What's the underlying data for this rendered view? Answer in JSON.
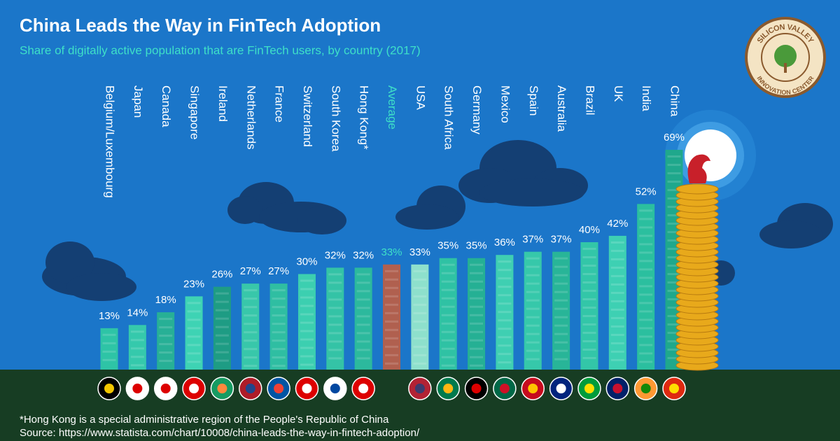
{
  "chart_data": {
    "type": "bar",
    "title": "China Leads the Way in FinTech Adoption",
    "subtitle": "Share of digitally active population that are FinTech users, by country (2017)",
    "categories": [
      "Belgium/Luxembourg",
      "Japan",
      "Canada",
      "Singapore",
      "Ireland",
      "Netherlands",
      "France",
      "Switzerland",
      "South Korea",
      "Hong Kong*",
      "Average",
      "USA",
      "South Africa",
      "Germany",
      "Mexico",
      "Spain",
      "Australia",
      "Brazil",
      "UK",
      "India",
      "China"
    ],
    "values": [
      13,
      14,
      18,
      23,
      26,
      27,
      27,
      30,
      32,
      32,
      33,
      33,
      35,
      35,
      36,
      37,
      37,
      40,
      42,
      52,
      69
    ],
    "value_labels": [
      "13%",
      "14%",
      "18%",
      "23%",
      "26%",
      "27%",
      "27%",
      "30%",
      "32%",
      "32%",
      "33%",
      "33%",
      "35%",
      "35%",
      "36%",
      "37%",
      "37%",
      "40%",
      "42%",
      "52%",
      "69%"
    ],
    "colors": [
      "#2ec4a6",
      "#35c9ac",
      "#27b096",
      "#3ed3b4",
      "#1e9c84",
      "#38c7aa",
      "#2fbea2",
      "#3ccfb0",
      "#34c3a6",
      "#2cb99d",
      "#b0604f",
      "#8ee0cc",
      "#2fc2a4",
      "#25b094",
      "#3fcfb2",
      "#36c8aa",
      "#28b598",
      "#33c6a8",
      "#3ed0b3",
      "#2bbf9f",
      "#1fa88c"
    ],
    "label_colors": [
      "#ffffff",
      "#ffffff",
      "#ffffff",
      "#ffffff",
      "#ffffff",
      "#ffffff",
      "#ffffff",
      "#ffffff",
      "#ffffff",
      "#ffffff",
      "#3ee0c8",
      "#ffffff",
      "#ffffff",
      "#ffffff",
      "#ffffff",
      "#ffffff",
      "#ffffff",
      "#ffffff",
      "#ffffff",
      "#ffffff",
      "#ffffff"
    ],
    "footnote": "*Hong Kong is a special administrative region of the People's Republic of China",
    "source": "Source: https://www.statista.com/chart/10008/china-leads-the-way-in-fintech-adoption/",
    "logo": {
      "top": "SILICON VALLEY",
      "bottom": "INNOVATION CENTER"
    }
  }
}
